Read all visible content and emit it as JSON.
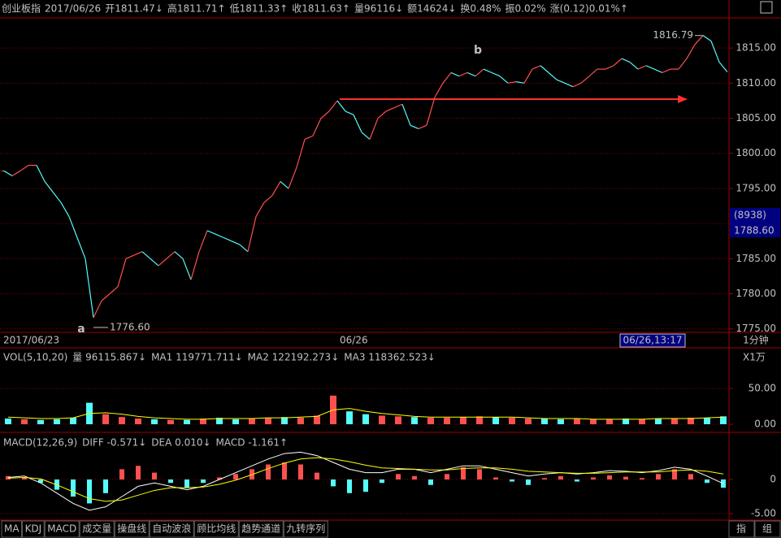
{
  "header": [
    {
      "text": "创业板指",
      "color": "#c0c0c0"
    },
    {
      "text": "2017/06/26",
      "color": "#c0c0c0"
    },
    {
      "text": "开1811.47↓",
      "color": "#00e0e0"
    },
    {
      "text": "高1811.71↑",
      "color": "#ff5050"
    },
    {
      "text": "低1811.33↑",
      "color": "#ff5050"
    },
    {
      "text": "收1811.63↑",
      "color": "#ff5050"
    },
    {
      "text": "量96116↓",
      "color": "#00e0e0"
    },
    {
      "text": "额14624↓",
      "color": "#00e0e0"
    },
    {
      "text": "换0.48%",
      "color": "#c0c0c0"
    },
    {
      "text": "振0.02%",
      "color": "#c0c0c0"
    },
    {
      "text": "涨(0.12)0.01%↑",
      "color": "#ff5050"
    }
  ],
  "chart_data": [
    {
      "type": "line",
      "categories": [
        "2017/06/23",
        null,
        null,
        null,
        null,
        null,
        null,
        null,
        null,
        null,
        null,
        null,
        null,
        null,
        null,
        null,
        null,
        null,
        null,
        null,
        null,
        null,
        null,
        null,
        null,
        null,
        null,
        null,
        null,
        null,
        null,
        null,
        null,
        null,
        null,
        null,
        null,
        null,
        null,
        null,
        null,
        null,
        "06/26",
        null,
        null,
        null,
        null,
        null,
        null,
        null,
        null,
        null,
        null,
        null,
        null,
        null,
        null,
        null,
        null,
        null,
        null,
        null,
        null,
        null,
        null,
        null,
        null,
        null,
        null,
        null,
        null,
        null,
        null,
        null,
        null,
        null,
        null,
        null,
        null,
        null,
        null,
        null,
        null,
        null,
        null,
        null,
        null,
        null,
        null,
        null
      ],
      "values": [
        1797.5,
        1796.8,
        1797.5,
        1798.3,
        1798.3,
        1796,
        1794.5,
        1793,
        1791,
        1788,
        1785,
        1776.6,
        1779,
        1780,
        1781,
        1785,
        1785.5,
        1786,
        1785,
        1784,
        1785,
        1786,
        1785,
        1782,
        1786,
        1789,
        1788.5,
        1788,
        1787.5,
        1787,
        1786,
        1791,
        1793,
        1794,
        1796,
        1795,
        1798,
        1802,
        1802.5,
        1805,
        1806,
        1807.5,
        1806,
        1805.5,
        1803,
        1802,
        1805,
        1806,
        1806.5,
        1807,
        1804,
        1803.5,
        1804,
        1808,
        1810,
        1811.5,
        1811,
        1811.5,
        1811,
        1812,
        1811.5,
        1811,
        1810,
        1810.2,
        1810,
        1812,
        1812.5,
        1811.5,
        1810.5,
        1810,
        1809.5,
        1810,
        1811,
        1812,
        1812,
        1812.5,
        1813.5,
        1813,
        1812,
        1812.5,
        1812,
        1811.5,
        1812,
        1812,
        1813.5,
        1815.5,
        1816.79,
        1816,
        1813,
        1811.6
      ],
      "value_labels": [
        null,
        null,
        null,
        null,
        null,
        null,
        null,
        null,
        null,
        null,
        null,
        "1776.60",
        null,
        null,
        null,
        null,
        null,
        null,
        null,
        null,
        null,
        null,
        null,
        null,
        null,
        null,
        null,
        null,
        null,
        null,
        null,
        null,
        null,
        null,
        null,
        null,
        null,
        null,
        null,
        null,
        null,
        null,
        null,
        null,
        null,
        null,
        null,
        null,
        null,
        null,
        null,
        null,
        null,
        null,
        null,
        null,
        null,
        null,
        null,
        null,
        null,
        null,
        null,
        null,
        null,
        null,
        null,
        null,
        null,
        null,
        null,
        null,
        null,
        null,
        null,
        null,
        null,
        null,
        null,
        null,
        null,
        null,
        null,
        null,
        null,
        null,
        "1816.79",
        null,
        null,
        null
      ],
      "up_color": "#ff5050",
      "down_color": "#54fcfc",
      "annotations": [
        "a",
        "b"
      ],
      "ylim": [
        1774.5,
        1819.3
      ],
      "yticks": [
        {
          "value": 1775,
          "label": "1775.00"
        },
        {
          "value": 1780,
          "label": "1780.00"
        },
        {
          "value": 1785,
          "label": "1785.00"
        },
        {
          "value": 1790,
          "label": "1790.00"
        },
        {
          "value": 1795,
          "label": "1795.00"
        },
        {
          "value": 1800,
          "label": "1800.00"
        },
        {
          "value": 1805,
          "label": "1805.00"
        },
        {
          "value": 1810,
          "label": "1810.00"
        },
        {
          "value": 1815,
          "label": "1815.00"
        }
      ],
      "grid": true,
      "cursor_labels": [
        "(8938)",
        "1788.60"
      ],
      "cursor_time": "06/26,13:17",
      "period": "1分钟"
    },
    {
      "type": "bar",
      "legend": [
        {
          "text": "VOL(5,10,20)",
          "color": "#c0c0c0"
        },
        {
          "text": "量 96115.867↓",
          "color": "#ffffff"
        },
        {
          "text": "MA1 119771.711↓",
          "color": "#ffff00"
        },
        {
          "text": "MA2 122192.273↓",
          "color": "#ff50ff"
        },
        {
          "text": "MA3 118362.523↓",
          "color": "#50ff50"
        }
      ],
      "unit_label": "X1万",
      "categories": [
        null,
        null,
        null,
        null,
        null,
        null,
        null,
        null,
        null,
        null,
        null,
        null,
        null,
        null,
        null,
        null,
        null,
        null,
        null,
        null,
        null,
        null,
        null,
        null,
        null,
        null,
        null,
        null,
        null,
        null,
        null,
        null,
        null,
        null,
        null,
        null,
        null,
        null,
        null,
        null,
        null,
        null,
        null,
        null,
        null
      ],
      "series": [
        {
          "color": "#ff5050",
          "values": [
            8,
            7,
            6,
            7,
            9,
            30,
            14,
            10,
            8,
            7,
            6,
            6,
            8,
            9,
            7,
            8,
            9,
            10,
            9,
            12,
            40,
            18,
            14,
            12,
            11,
            10,
            9,
            9,
            10,
            11,
            10,
            9,
            8,
            8,
            7,
            8,
            7,
            7,
            8,
            7,
            8,
            8,
            9,
            9,
            11
          ]
        },
        {
          "color": "#ffff00",
          "values": [
            10,
            9,
            8,
            8,
            9,
            15,
            16,
            14,
            11,
            9,
            8,
            7,
            7,
            8,
            8,
            8,
            9,
            9,
            10,
            11,
            20,
            22,
            18,
            15,
            13,
            11,
            10,
            10,
            10,
            10,
            10,
            10,
            9,
            8,
            8,
            8,
            7,
            7,
            7,
            7,
            8,
            8,
            8,
            9,
            10
          ]
        }
      ],
      "ylim": [
        0,
        87.5
      ],
      "yticks": [
        {
          "value": 0,
          "label": "0.00"
        },
        {
          "value": 50,
          "label": "50.00"
        }
      ],
      "grid": true
    },
    {
      "type": "macd",
      "legend": [
        {
          "text": "MACD(12,26,9)",
          "color": "#c0c0c0"
        },
        {
          "text": "DIFF -0.571↓",
          "color": "#ffffff"
        },
        {
          "text": "DEA 0.010↓",
          "color": "#ffff00"
        },
        {
          "text": "MACD -1.161↑",
          "color": "#ff50ff"
        }
      ],
      "categories": [
        null,
        null,
        null,
        null,
        null,
        null,
        null,
        null,
        null,
        null,
        null,
        null,
        null,
        null,
        null,
        null,
        null,
        null,
        null,
        null,
        null,
        null,
        null,
        null,
        null,
        null,
        null,
        null,
        null,
        null,
        null,
        null,
        null,
        null,
        null,
        null,
        null,
        null,
        null,
        null,
        null,
        null,
        null,
        null,
        null
      ],
      "series": [
        {
          "color": "#ff5050",
          "values": [
            0.5,
            0.3,
            -0.5,
            -1.5,
            -2.5,
            -3.5,
            -2,
            1.5,
            2,
            1,
            -0.5,
            -1.2,
            -0.5,
            0.3,
            0.8,
            1.5,
            2.2,
            2.5,
            2.2,
            1,
            -1,
            -2,
            -1.8,
            -0.5,
            0.8,
            0.5,
            -0.8,
            0.8,
            1.8,
            1.5,
            0.3,
            -0.3,
            -0.8,
            0.2,
            0.5,
            -0.3,
            0.3,
            0.6,
            0.4,
            0.2,
            0.8,
            1.5,
            0.8,
            -0.5,
            -1.2
          ]
        },
        {
          "color": "#ffffff",
          "values": [
            0.3,
            0.5,
            -0.5,
            -2,
            -3.5,
            -4.5,
            -4,
            -2.5,
            -1,
            -0.5,
            -1,
            -1.5,
            -1,
            0,
            1,
            2,
            3,
            3.8,
            4,
            3.5,
            2.5,
            1.5,
            1,
            1,
            1.5,
            1.5,
            1,
            1.5,
            2,
            2,
            1.5,
            1,
            0.5,
            0.8,
            1,
            0.8,
            1,
            1.3,
            1.2,
            1,
            1.3,
            1.8,
            1.5,
            0.5,
            -0.6
          ]
        },
        {
          "color": "#ffff00",
          "values": [
            0.2,
            0.3,
            0.1,
            -0.8,
            -1.8,
            -2.8,
            -3.2,
            -3,
            -2.3,
            -1.6,
            -1.2,
            -1.2,
            -1.1,
            -0.7,
            -0.1,
            0.7,
            1.6,
            2.4,
            3,
            3.2,
            3,
            2.6,
            2.1,
            1.7,
            1.6,
            1.5,
            1.4,
            1.4,
            1.6,
            1.7,
            1.7,
            1.5,
            1.2,
            1.1,
            1,
            0.9,
            0.9,
            1,
            1.1,
            1.1,
            1.1,
            1.3,
            1.4,
            1.2,
            0.8
          ]
        }
      ],
      "neg_color": "#54fcfc",
      "ylim": [
        -5.95,
        5.95
      ],
      "yticks": [
        0,
        {
          "value": -5,
          "label": "-5.00"
        }
      ],
      "grid": true
    }
  ],
  "tabs": [
    "MA",
    "KDJ",
    "MACD",
    "成交量",
    "操盘线",
    "自动波浪",
    "顾比均线",
    "趋势通道",
    "九转序列"
  ],
  "active_tab": "MACD",
  "tabs_right": [
    "指",
    "组"
  ]
}
